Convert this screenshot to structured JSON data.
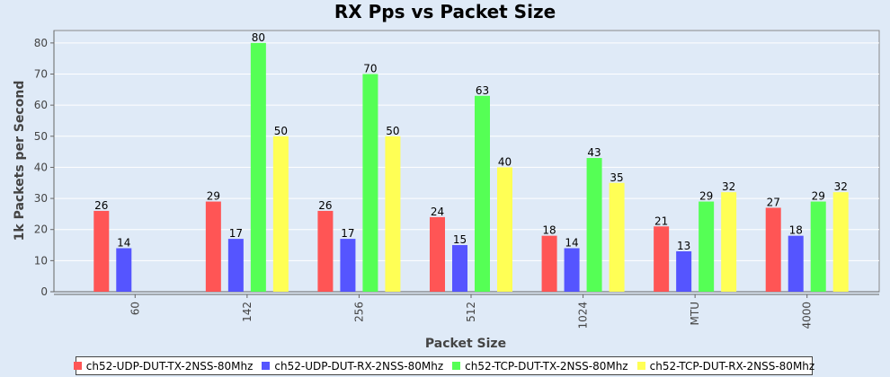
{
  "chart_data": {
    "type": "bar",
    "title": "RX Pps vs Packet Size",
    "xlabel": "Packet Size",
    "ylabel": "1k Packets per Second",
    "ylim": [
      0,
      84
    ],
    "yticks": [
      0,
      10,
      20,
      30,
      40,
      50,
      60,
      70,
      80
    ],
    "grid": true,
    "legend_position": "bottom",
    "categories": [
      "60",
      "142",
      "256",
      "512",
      "1024",
      "MTU",
      "4000"
    ],
    "series": [
      {
        "name": "ch52-UDP-DUT-TX-2NSS-80Mhz",
        "color": "#ff5555",
        "values": [
          26,
          29,
          26,
          24,
          18,
          21,
          27
        ]
      },
      {
        "name": "ch52-UDP-DUT-RX-2NSS-80Mhz",
        "color": "#5555ff",
        "values": [
          14,
          17,
          17,
          15,
          14,
          13,
          18
        ]
      },
      {
        "name": "ch52-TCP-DUT-TX-2NSS-80Mhz",
        "color": "#55ff55",
        "values": [
          null,
          80,
          70,
          63,
          43,
          29,
          29
        ]
      },
      {
        "name": "ch52-TCP-DUT-RX-2NSS-80Mhz",
        "color": "#ffff55",
        "values": [
          null,
          50,
          50,
          40,
          35,
          32,
          32
        ]
      }
    ]
  }
}
